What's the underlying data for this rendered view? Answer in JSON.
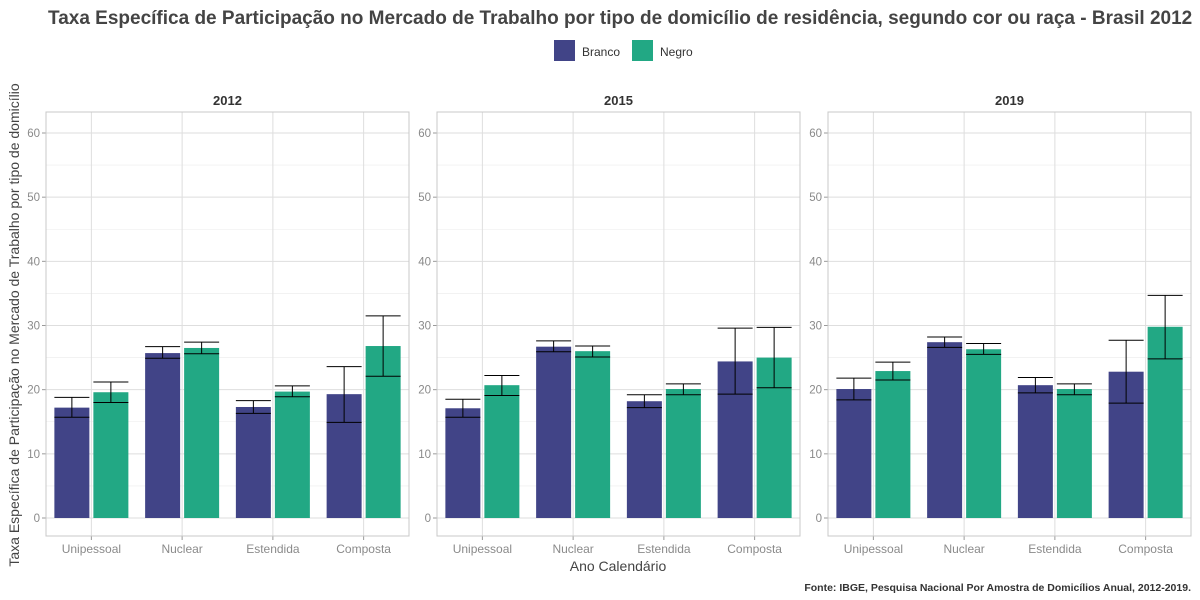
{
  "chart_data": {
    "type": "bar",
    "title": "Taxa Específica de Participação no Mercado de Trabalho por tipo de domicílio de residência, segundo cor ou raça - Brasil 2012",
    "xlabel": "Ano Calendário",
    "ylabel": "Taxa Específica de Participação no Mercado de Trabalho por tipo de domicílio",
    "caption": "Fonte: IBGE, Pesquisa Nacional Por Amostra de Domicílios Anual, 2012-2019.",
    "legend_position": "top",
    "ylim": [
      0,
      63
    ],
    "yticks": [
      0,
      10,
      20,
      30,
      40,
      50,
      60
    ],
    "grid": true,
    "categories": [
      "Unipessoal",
      "Nuclear",
      "Estendida",
      "Composta"
    ],
    "series_style": [
      {
        "name": "Branco",
        "color": "#414487"
      },
      {
        "name": "Negro",
        "color": "#22A884"
      }
    ],
    "panels": [
      {
        "label": "2012",
        "series": [
          {
            "name": "Branco",
            "values": [
              17.2,
              25.7,
              17.3,
              19.3
            ],
            "error": [
              [
                15.7,
                18.8
              ],
              [
                24.9,
                26.7
              ],
              [
                16.3,
                18.3
              ],
              [
                14.9,
                23.6
              ]
            ]
          },
          {
            "name": "Negro",
            "values": [
              19.6,
              26.5,
              19.7,
              26.8
            ],
            "error": [
              [
                18.0,
                21.2
              ],
              [
                25.6,
                27.4
              ],
              [
                18.9,
                20.6
              ],
              [
                22.1,
                31.5
              ]
            ]
          }
        ]
      },
      {
        "label": "2015",
        "series": [
          {
            "name": "Branco",
            "values": [
              17.1,
              26.7,
              18.2,
              24.4
            ],
            "error": [
              [
                15.7,
                18.5
              ],
              [
                25.9,
                27.6
              ],
              [
                17.2,
                19.2
              ],
              [
                19.3,
                29.6
              ]
            ]
          },
          {
            "name": "Negro",
            "values": [
              20.7,
              26.0,
              20.1,
              25.0
            ],
            "error": [
              [
                19.1,
                22.2
              ],
              [
                25.1,
                26.8
              ],
              [
                19.2,
                20.9
              ],
              [
                20.3,
                29.7
              ]
            ]
          }
        ]
      },
      {
        "label": "2019",
        "series": [
          {
            "name": "Branco",
            "values": [
              20.1,
              27.4,
              20.7,
              22.8
            ],
            "error": [
              [
                18.4,
                21.8
              ],
              [
                26.6,
                28.2
              ],
              [
                19.5,
                21.9
              ],
              [
                17.9,
                27.7
              ]
            ]
          },
          {
            "name": "Negro",
            "values": [
              22.9,
              26.3,
              20.1,
              29.8
            ],
            "error": [
              [
                21.5,
                24.3
              ],
              [
                25.5,
                27.2
              ],
              [
                19.2,
                20.9
              ],
              [
                24.8,
                34.7
              ]
            ]
          }
        ]
      }
    ]
  }
}
